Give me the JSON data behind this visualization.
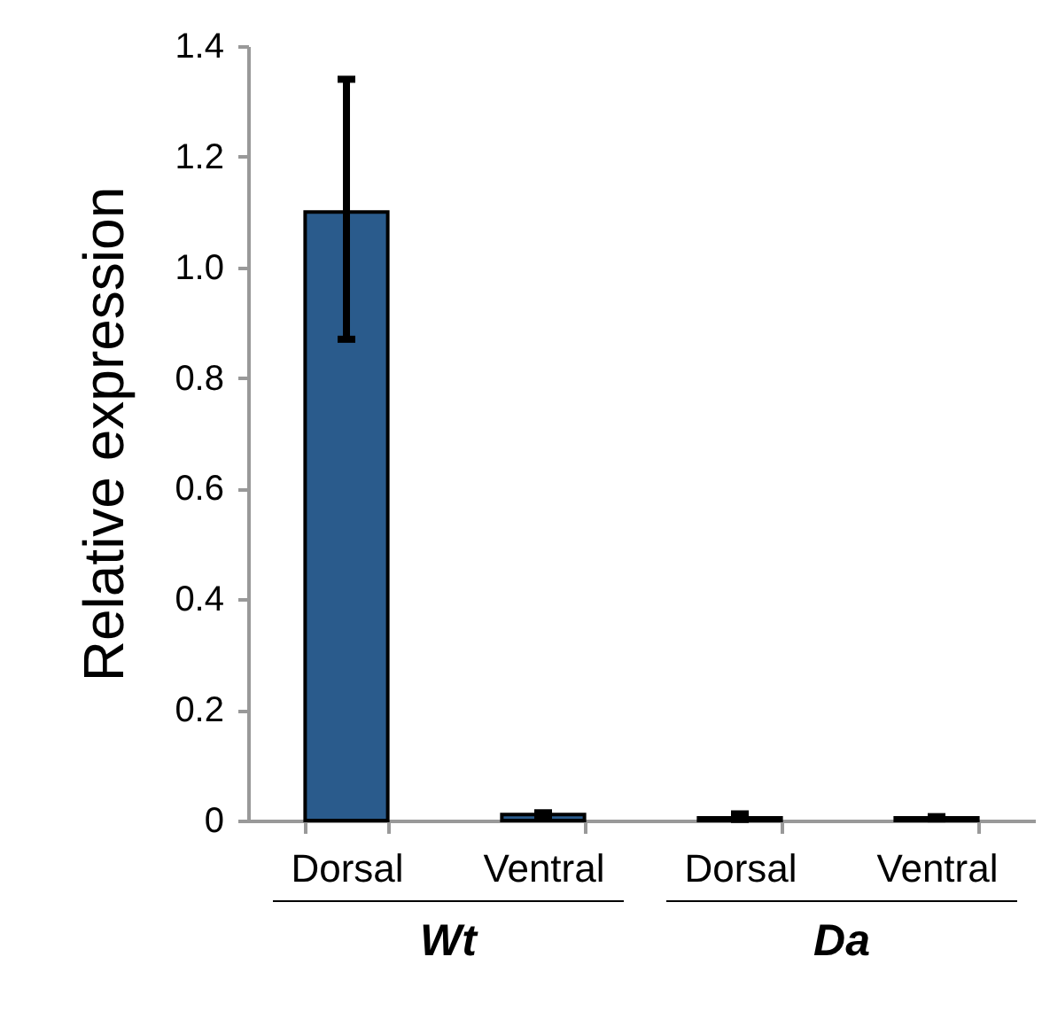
{
  "chart_data": {
    "type": "bar",
    "ylabel": "Relative expression",
    "categories": [
      "Dorsal",
      "Ventral",
      "Dorsal",
      "Ventral"
    ],
    "values": [
      1.1,
      0.011,
      0.005,
      0.005
    ],
    "errors": [
      [
        0.87,
        1.34
      ],
      0.003,
      [
        0.002,
        0.012
      ],
      0.002
    ],
    "color": "#2a5b8c",
    "ylim": [
      0,
      1.4
    ],
    "yticks": [
      0,
      0.2,
      0.4,
      0.6,
      0.8,
      {
        "value": 1,
        "label": "1.0"
      },
      1.2,
      1.4
    ],
    "annotations": [
      "Wt",
      "Da"
    ]
  }
}
